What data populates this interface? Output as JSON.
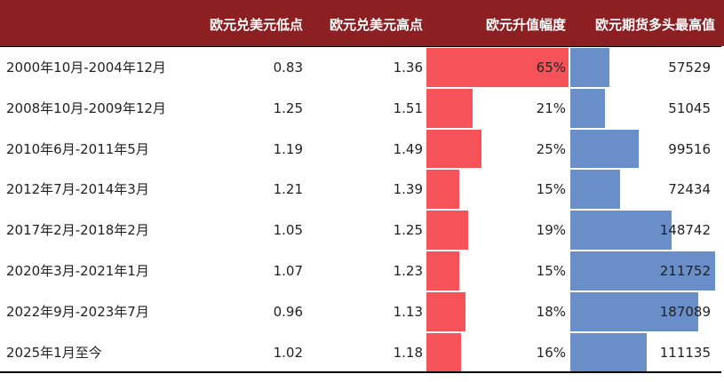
{
  "table": {
    "columns": [
      "欧元兑美元低点",
      "欧元兑美元高点",
      "欧元升值幅度",
      "欧元期货多头最高值"
    ],
    "rows": [
      {
        "period": "2000年10月-2004年12月",
        "low": 0.83,
        "high": 1.36,
        "rise": {
          "value": 65,
          "label": "65%"
        },
        "futures": 57529
      },
      {
        "period": "2008年10月-2009年12月",
        "low": 1.25,
        "high": 1.51,
        "rise": {
          "value": 21,
          "label": "21%"
        },
        "futures": 51045
      },
      {
        "period": "2010年6月-2011年5月",
        "low": 1.19,
        "high": 1.49,
        "rise": {
          "value": 25,
          "label": "25%"
        },
        "futures": 99516
      },
      {
        "period": "2012年7月-2014年3月",
        "low": 1.21,
        "high": 1.39,
        "rise": {
          "value": 15,
          "label": "15%"
        },
        "futures": 72434
      },
      {
        "period": "2017年2月-2018年2月",
        "low": 1.05,
        "high": 1.25,
        "rise": {
          "value": 19,
          "label": "19%"
        },
        "futures": 148742
      },
      {
        "period": "2020年3月-2021年1月",
        "low": 1.07,
        "high": 1.23,
        "rise": {
          "value": 15,
          "label": "15%"
        },
        "futures": 211752
      },
      {
        "period": "2022年9月-2023年7月",
        "low": 0.96,
        "high": 1.13,
        "rise": {
          "value": 18,
          "label": "18%"
        },
        "futures": 187089
      },
      {
        "period": "2025年1月至今",
        "low": 1.02,
        "high": 1.18,
        "rise": {
          "value": 16,
          "label": "16%"
        },
        "futures": 111135
      }
    ]
  }
}
